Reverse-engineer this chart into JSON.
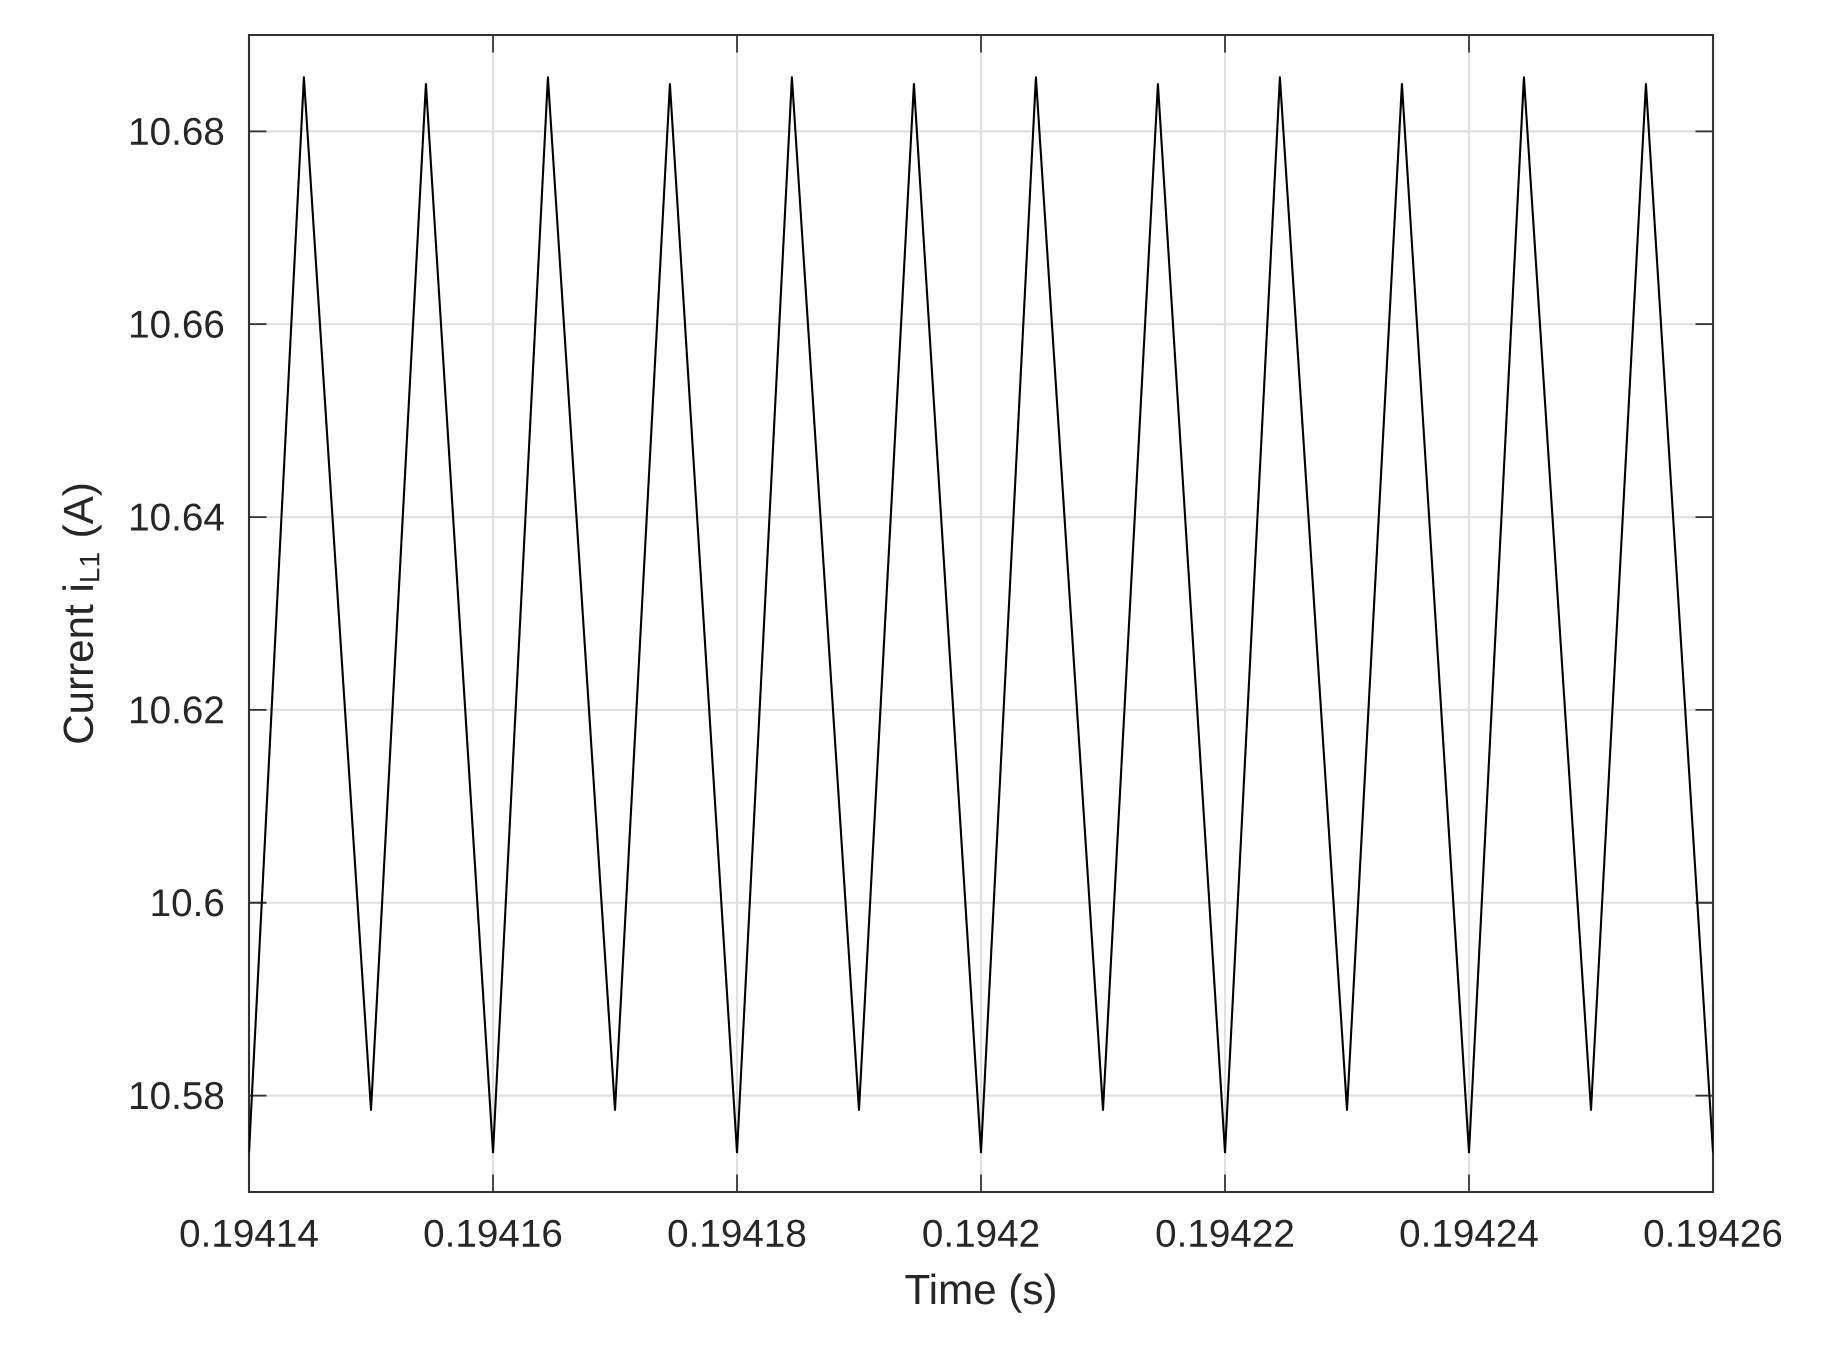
{
  "chart_data": {
    "type": "line",
    "xlabel": "Time (s)",
    "ylabel": "Current i$_{L1}$ (A)",
    "x": [
      0.19414,
      0.1941445,
      0.19415,
      0.1941545,
      0.19416,
      0.1941645,
      0.19417,
      0.1941745,
      0.19418,
      0.1941845,
      0.19419,
      0.1941945,
      0.1942,
      0.1942045,
      0.19421,
      0.1942145,
      0.19422,
      0.1942245,
      0.19423,
      0.1942345,
      0.19424,
      0.1942445,
      0.19425,
      0.1942545,
      0.19426
    ],
    "series": [
      {
        "color": "#000000",
        "values": [
          10.5741,
          10.6856,
          10.5785,
          10.6849,
          10.5741,
          10.6856,
          10.5785,
          10.6849,
          10.5741,
          10.6856,
          10.5785,
          10.6849,
          10.5741,
          10.6856,
          10.5785,
          10.6849,
          10.5741,
          10.6856,
          10.5785,
          10.6849,
          10.5741,
          10.6856,
          10.5785,
          10.6849,
          10.5741
        ]
      }
    ],
    "xlim": [
      0.19414,
      0.19426
    ],
    "ylim": [
      10.57,
      10.69
    ],
    "xticks": [
      0.19414,
      0.19416,
      0.19418,
      0.1942,
      0.19422,
      0.19424,
      0.19426
    ],
    "yticks": [
      10.58,
      10.6,
      10.62,
      10.64,
      10.66,
      10.68
    ],
    "grid": true,
    "marker": "none",
    "line_style": "solid"
  }
}
